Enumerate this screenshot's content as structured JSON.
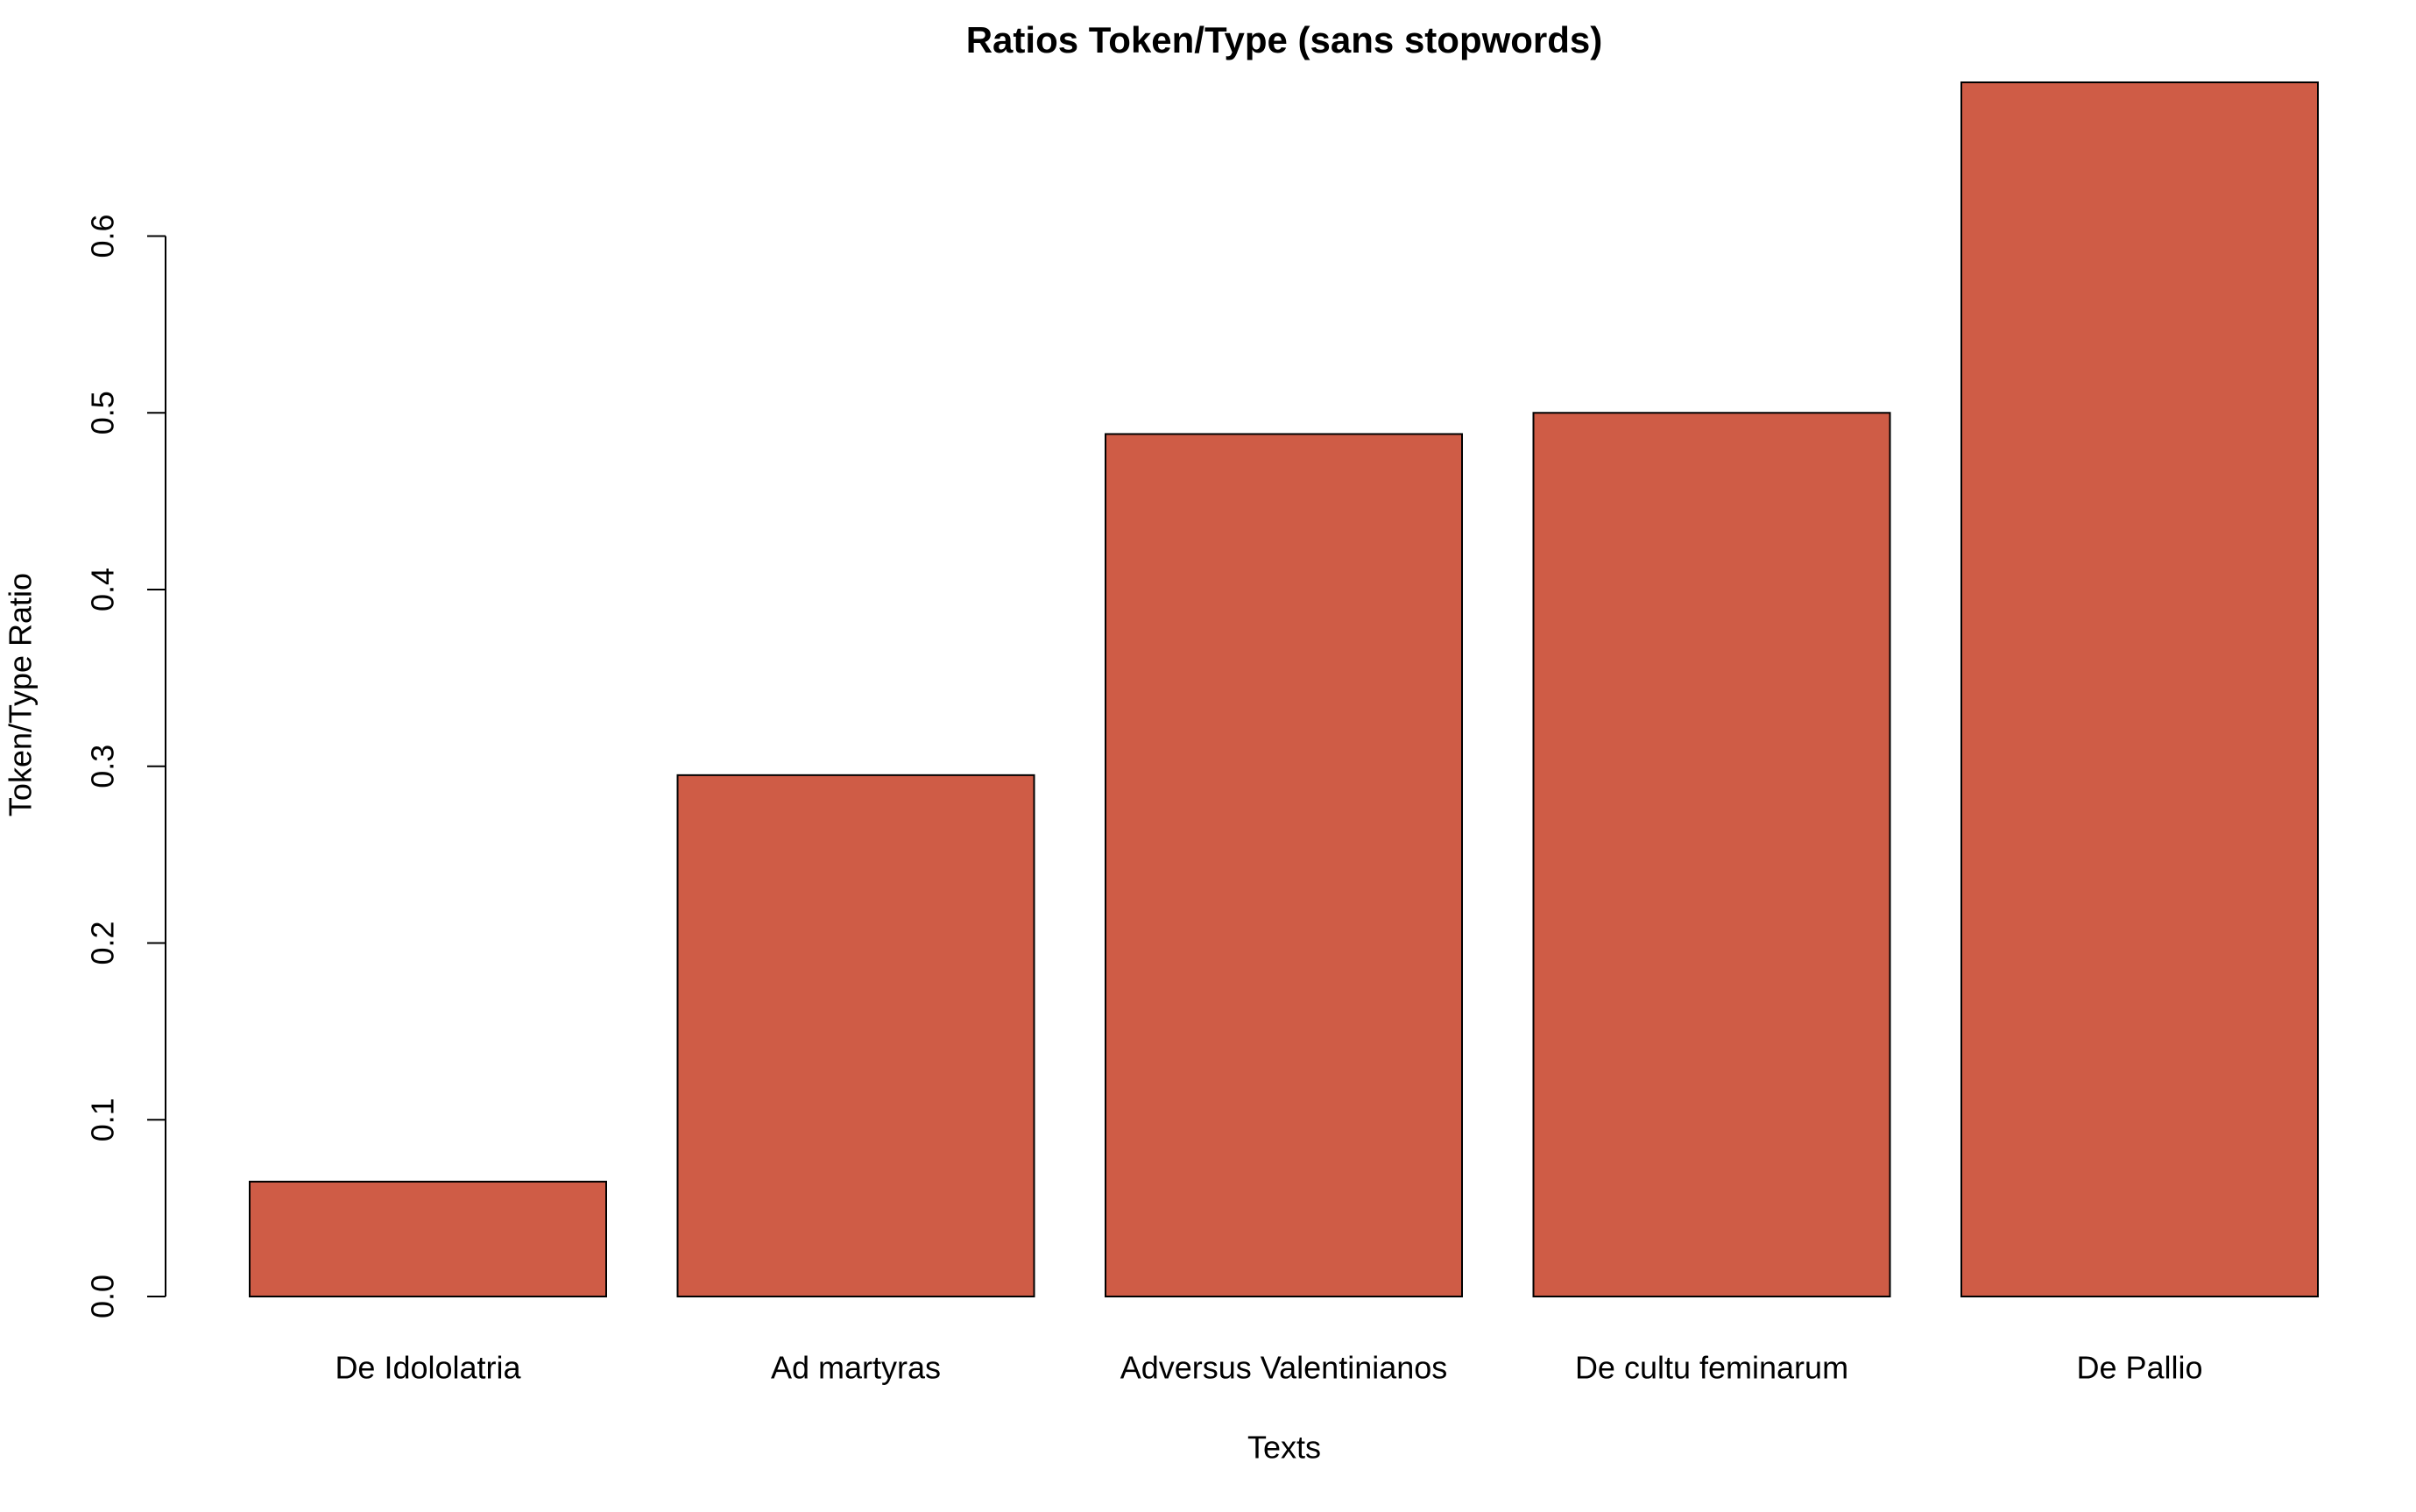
{
  "chart_data": {
    "type": "bar",
    "title": "Ratios Token/Type (sans stopwords)",
    "x_label": "Texts",
    "y_label": "Token/Type Ratio",
    "categories": [
      "De Idololatria",
      "Ad martyras",
      "Adversus Valentinianos",
      "De cultu feminarum",
      "De Pallio"
    ],
    "values": [
      0.065,
      0.295,
      0.488,
      0.5,
      0.687
    ],
    "color": "#cf5c46",
    "ylim": [
      0,
      0.687
    ],
    "yticks": [
      {
        "value": 0,
        "label": "0.0"
      },
      0.1,
      0.2,
      0.3,
      0.4,
      0.5,
      0.6
    ]
  }
}
